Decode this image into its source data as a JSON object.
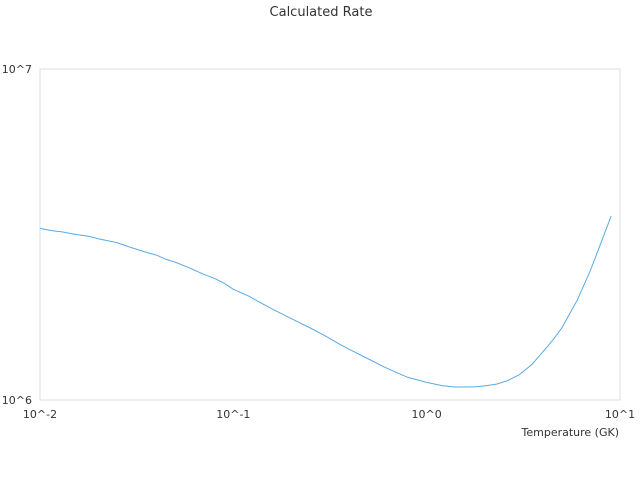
{
  "chart_data": {
    "type": "line",
    "title": "Calculated Rate",
    "xlabel": "Temperature (GK)",
    "ylabel": "",
    "x_scale": "log",
    "y_scale": "log",
    "xlim": [
      0.01,
      10
    ],
    "ylim": [
      1000000,
      10000000
    ],
    "x_tick_labels": [
      "10^-2",
      "10^-1",
      "10^0",
      "10^1"
    ],
    "x_tick_values": [
      0.01,
      0.1,
      1,
      10
    ],
    "y_tick_labels": [
      "10^6",
      "10^7"
    ],
    "y_tick_values": [
      1000000,
      10000000
    ],
    "grid": false,
    "legend": "none",
    "line_color": "#5aaae0",
    "series": [
      {
        "x": [
          0.01,
          0.0115,
          0.013,
          0.015,
          0.018,
          0.02,
          0.025,
          0.03,
          0.035,
          0.04,
          0.045,
          0.05,
          0.06,
          0.07,
          0.08,
          0.09,
          0.1,
          0.12,
          0.14,
          0.16,
          0.2,
          0.25,
          0.3,
          0.35,
          0.4,
          0.5,
          0.6,
          0.7,
          0.8,
          1.0,
          1.2,
          1.4,
          1.6,
          1.8,
          2.0,
          2.3,
          2.6,
          3.0,
          3.5,
          4.0,
          4.5,
          5.0,
          6.0,
          7.0,
          8.0,
          9.0
        ],
        "y": [
          3300000,
          3250000,
          3220000,
          3170000,
          3120000,
          3070000,
          2990000,
          2880000,
          2800000,
          2740000,
          2660000,
          2610000,
          2500000,
          2400000,
          2330000,
          2250000,
          2160000,
          2060000,
          1960000,
          1880000,
          1760000,
          1650000,
          1560000,
          1480000,
          1420000,
          1330000,
          1260000,
          1210000,
          1170000,
          1130000,
          1105000,
          1095000,
          1095000,
          1097000,
          1103000,
          1117000,
          1142000,
          1190000,
          1280000,
          1400000,
          1520000,
          1650000,
          2000000,
          2450000,
          3000000,
          3600000
        ]
      }
    ]
  }
}
